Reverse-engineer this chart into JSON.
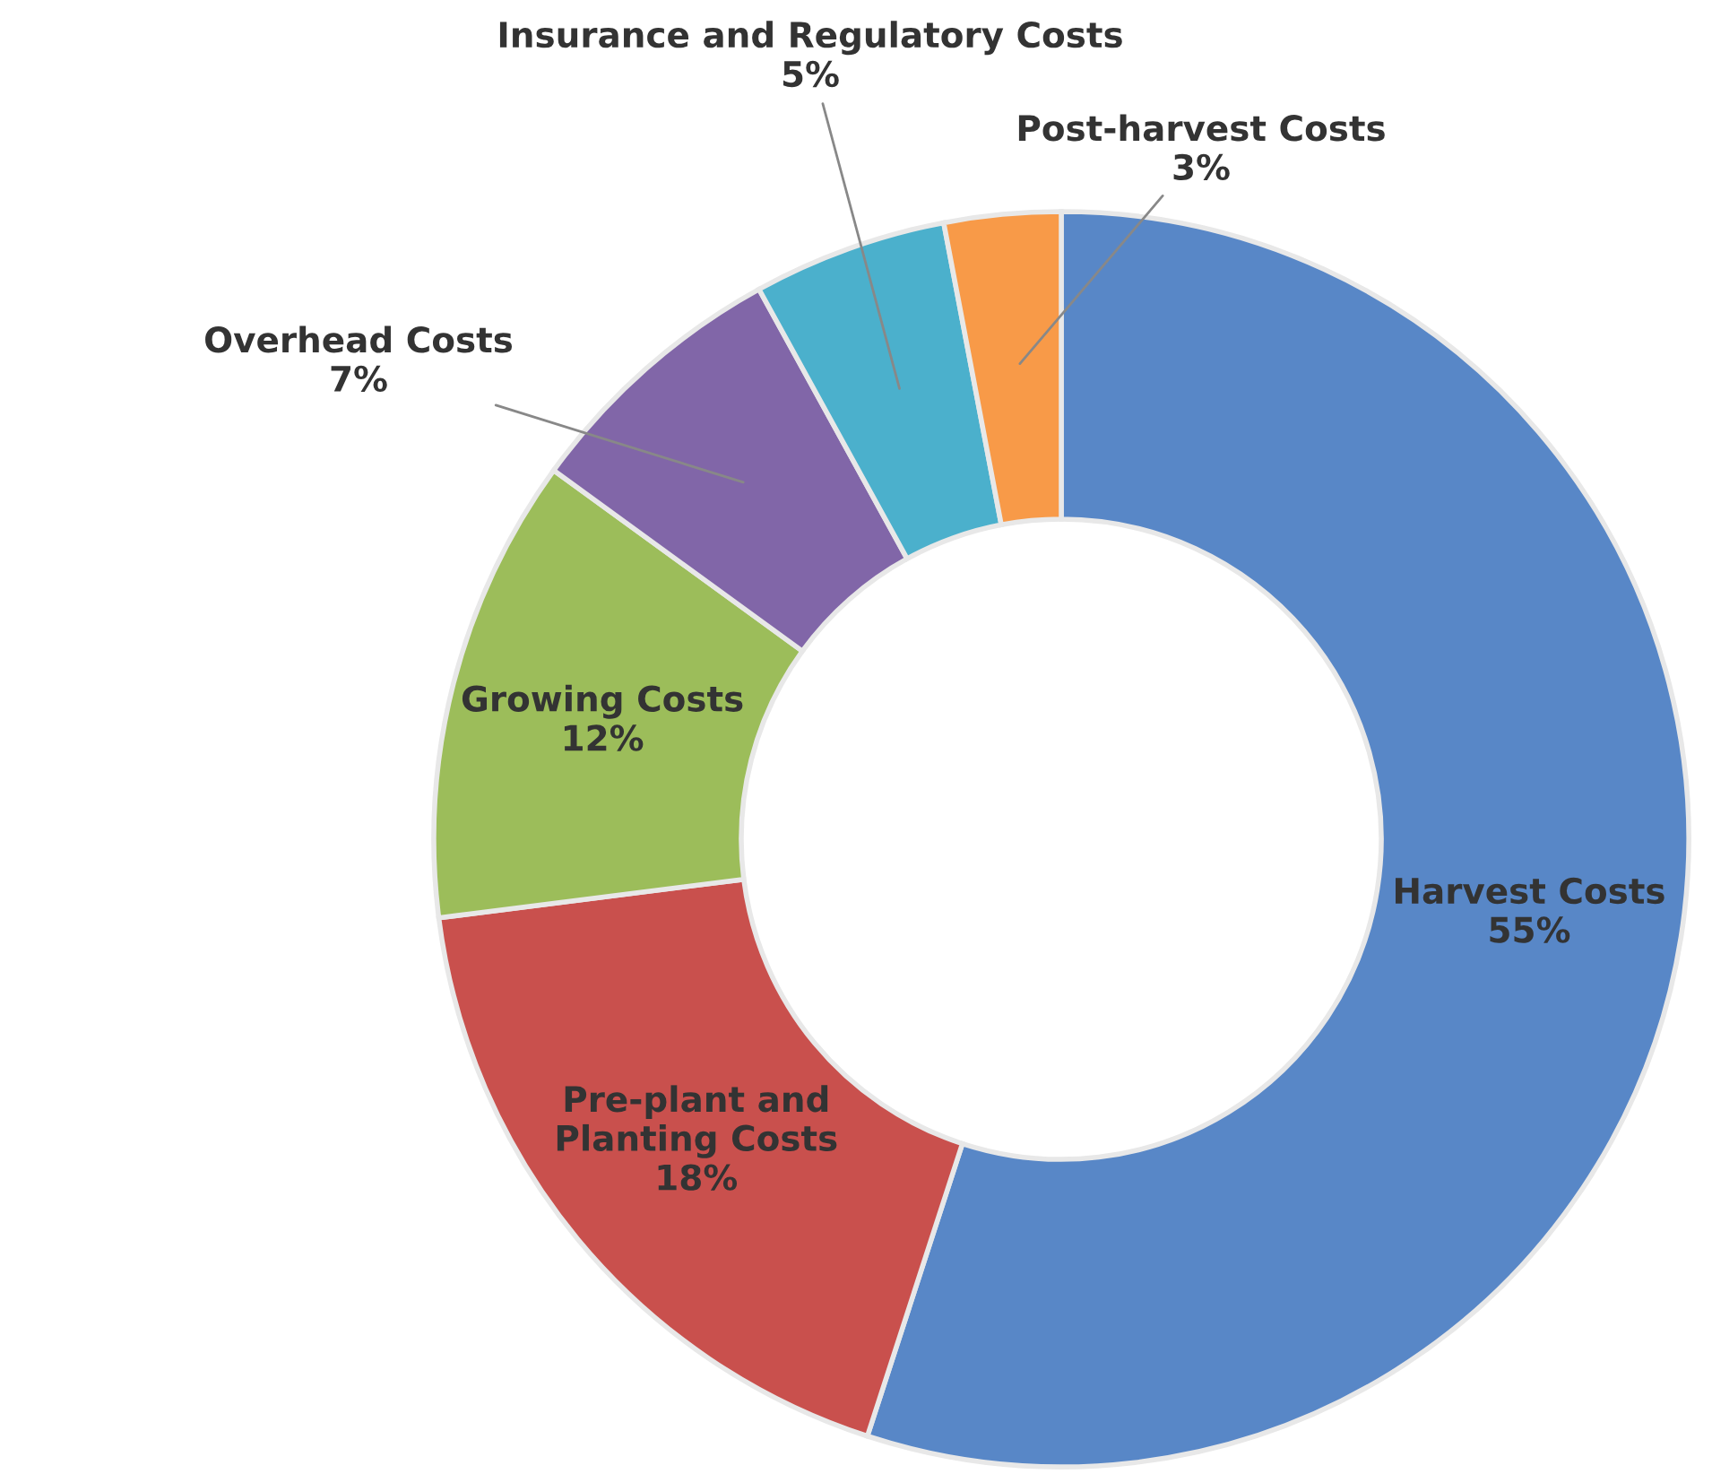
{
  "chart_data": {
    "type": "donut",
    "categories": [
      "Harvest Costs",
      "Pre-plant and\nPlanting Costs",
      "Growing Costs",
      "Overhead Costs",
      "Insurance and Regulatory Costs",
      "Post-harvest Costs"
    ],
    "values": [
      55,
      18,
      12,
      7,
      5,
      3
    ],
    "value_labels": [
      "55%",
      "18%",
      "12%",
      "7%",
      "5%",
      "3%"
    ],
    "colors": [
      "#5887c7",
      "#c9504d",
      "#9cbd5a",
      "#8166a8",
      "#4bb0cc",
      "#f89a48"
    ],
    "legend": false
  }
}
